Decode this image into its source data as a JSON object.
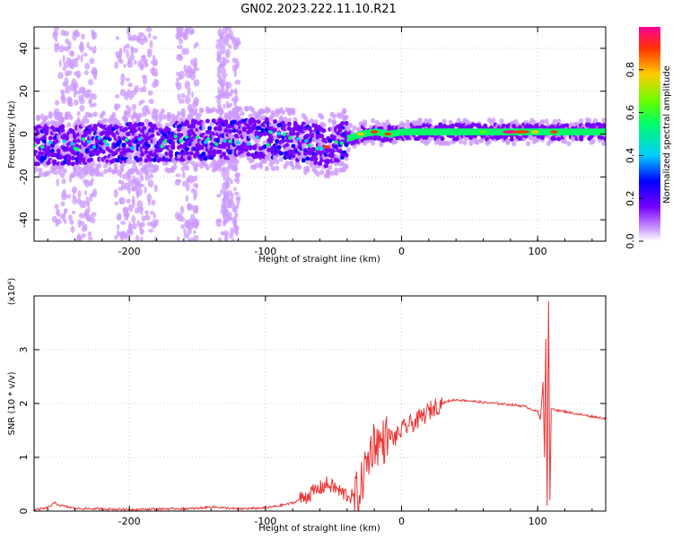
{
  "title": "GN02.2023.222.11.10.R21",
  "chart_data": [
    {
      "type": "heatmap",
      "title": "GN02.2023.222.11.10.R21",
      "xlabel": "Height of straight line (km)",
      "ylabel": "Frequency (Hz)",
      "xlim": [
        -270,
        150
      ],
      "ylim": [
        -50,
        50
      ],
      "xticks": [
        -200,
        -100,
        0,
        100
      ],
      "yticks": [
        -40,
        -20,
        0,
        20,
        40
      ],
      "grid": true,
      "colorbar": {
        "label": "Normalized spectral amplitude",
        "range": [
          0,
          1
        ],
        "ticks": [
          0.0,
          0.2,
          0.4,
          0.6,
          0.8
        ],
        "colors": [
          "#ffffff",
          "#cc99ff",
          "#7700ff",
          "#0000ff",
          "#00ccff",
          "#00ff66",
          "#66ff00",
          "#ffcc00",
          "#ff3300",
          "#ff0099"
        ]
      },
      "ridge_frequency": {
        "x": [
          -270,
          -240,
          -200,
          -160,
          -120,
          -90,
          -70,
          -55,
          -40,
          -30,
          -20,
          -10,
          0,
          50,
          100,
          150
        ],
        "y": [
          -5,
          -5,
          -4,
          -3,
          -2,
          -2,
          -4,
          -6,
          -2,
          0,
          1,
          0,
          1,
          1,
          1,
          1
        ]
      }
    },
    {
      "type": "line",
      "xlabel": "Height of straight line (km)",
      "ylabel": "SNR (10 * v/v)",
      "multiplier": "(x10⁴)",
      "xlim": [
        -270,
        150
      ],
      "ylim": [
        0,
        4
      ],
      "xticks": [
        -200,
        -100,
        0,
        100
      ],
      "yticks": [
        0,
        1,
        2,
        3
      ],
      "grid": true,
      "color": "#ee3333",
      "series": [
        {
          "x": [
            -270,
            -260,
            -255,
            -250,
            -240,
            -200,
            -150,
            -140,
            -120,
            -100,
            -90,
            -80,
            -70,
            -60,
            -55,
            -50,
            -45,
            -40,
            -35,
            -30,
            -28,
            -25,
            -22,
            -20,
            -15,
            -10,
            -5,
            0,
            5,
            10,
            15,
            20,
            25,
            30,
            35,
            40,
            50,
            60,
            70,
            80,
            90,
            95,
            100,
            102,
            104,
            105,
            106,
            107,
            108,
            109,
            110,
            112,
            115,
            120,
            130,
            140,
            150
          ],
          "y": [
            0.02,
            0.06,
            0.15,
            0.1,
            0.05,
            0.03,
            0.05,
            0.08,
            0.04,
            0.06,
            0.1,
            0.15,
            0.28,
            0.42,
            0.5,
            0.45,
            0.35,
            0.3,
            0.25,
            0.4,
            0.7,
            0.9,
            1.2,
            1.3,
            1.25,
            1.4,
            1.35,
            1.5,
            1.6,
            1.65,
            1.75,
            1.85,
            1.95,
            2.0,
            2.05,
            2.07,
            2.05,
            2.02,
            2.0,
            1.98,
            1.95,
            1.9,
            1.85,
            1.7,
            2.4,
            1.0,
            3.2,
            0.1,
            3.9,
            0.2,
            1.9,
            1.9,
            1.87,
            1.85,
            1.8,
            1.76,
            1.72
          ]
        }
      ]
    }
  ]
}
